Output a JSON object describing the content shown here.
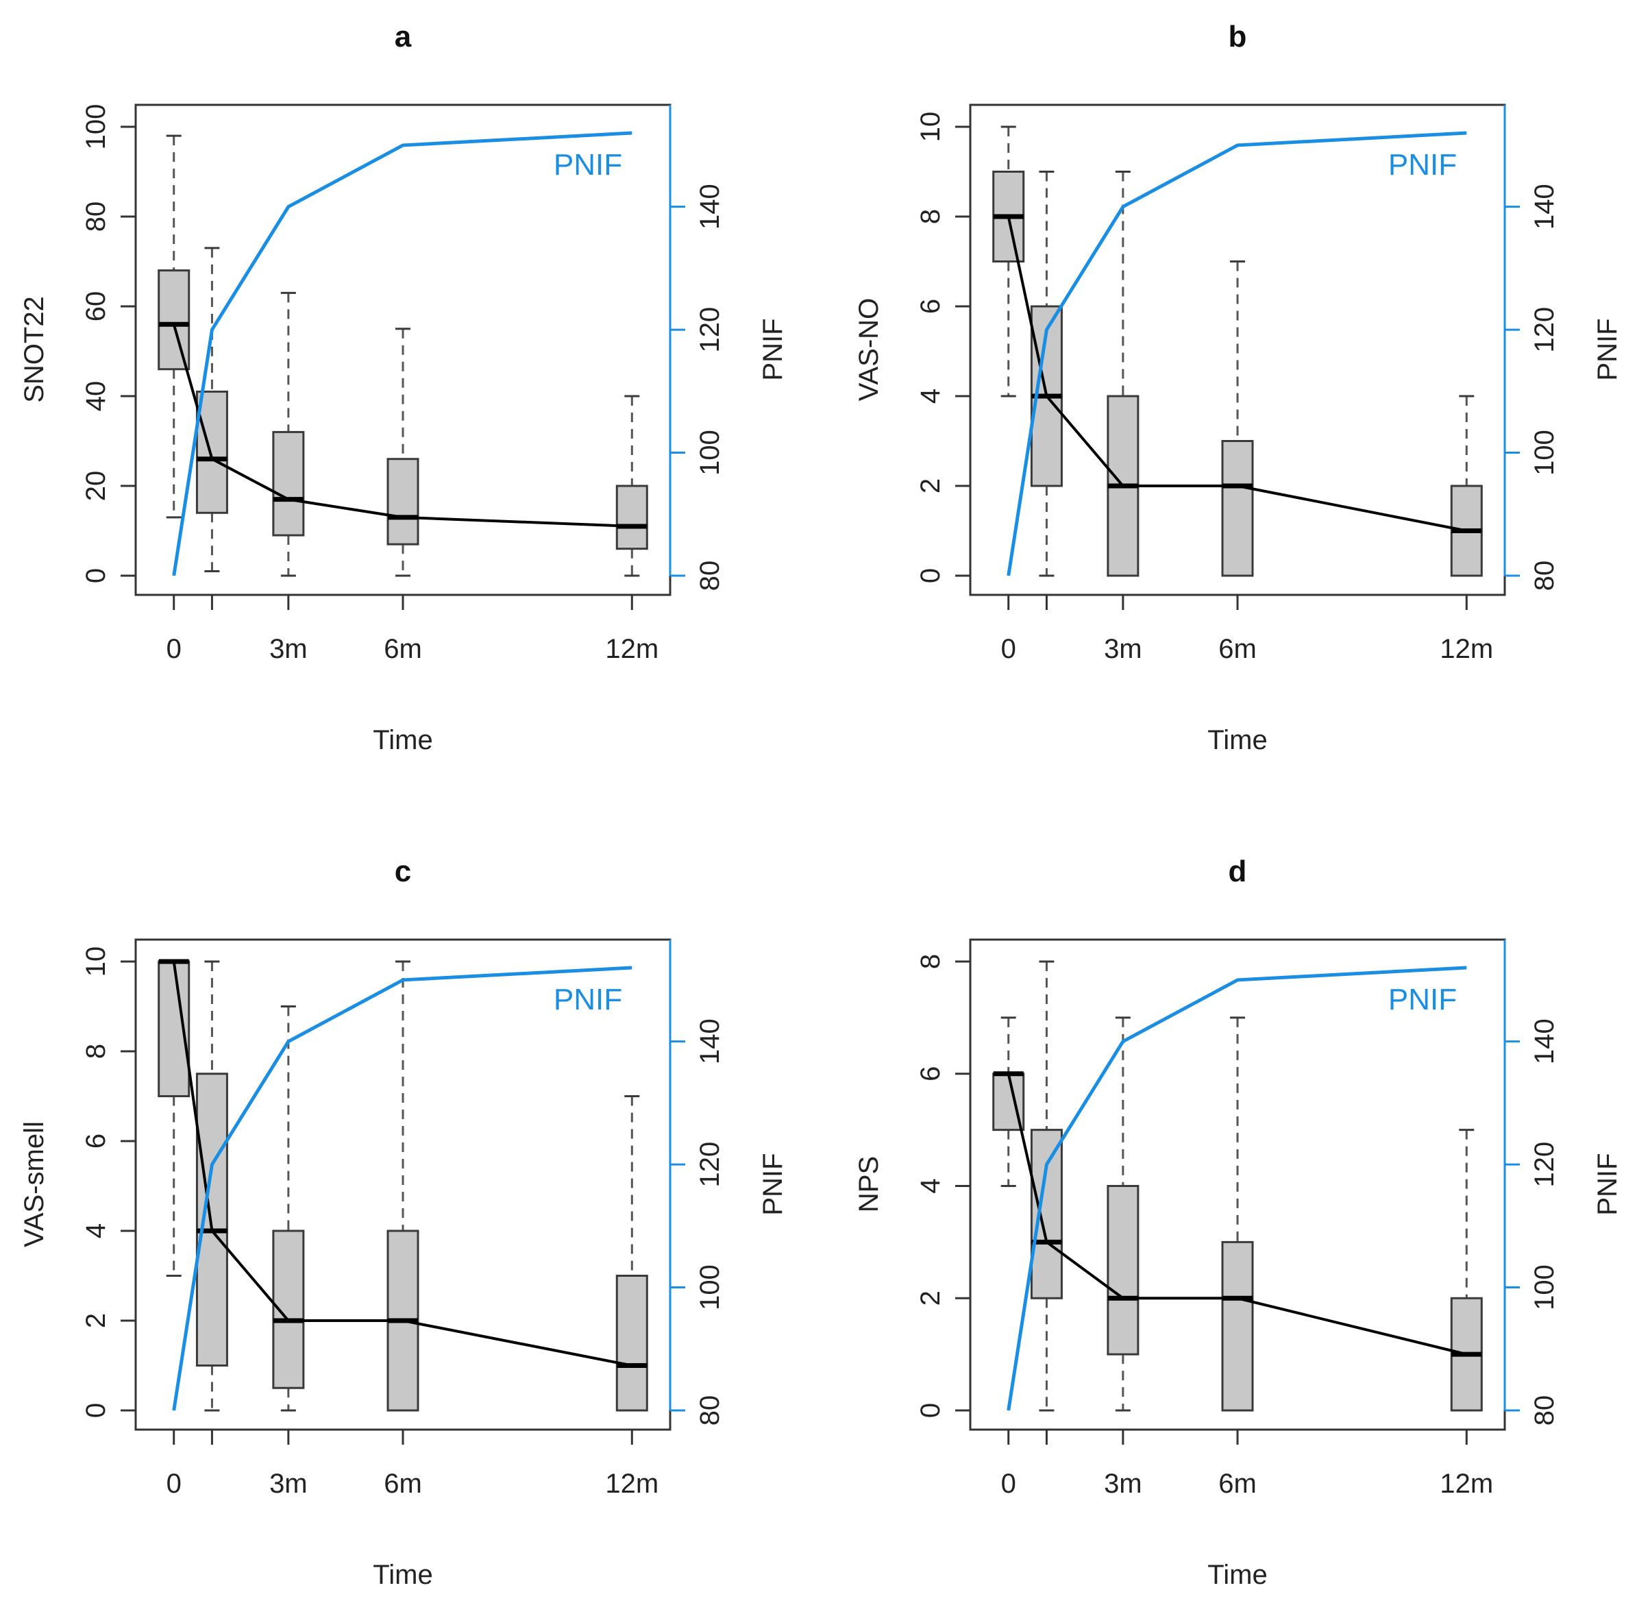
{
  "colors": {
    "box_fill": "#c8c8c8",
    "box_stroke": "#3a3a3a",
    "median_line": "#000000",
    "pnif_line": "#1a8ee3",
    "whisker": "#555555",
    "axis": "#333333"
  },
  "chart_data": [
    {
      "id": "a",
      "type": "box",
      "title": "a",
      "xlabel": "Time",
      "ylabel": "SNOT22",
      "ylabel_right": "PNIF",
      "ylim": [
        0,
        100
      ],
      "yticks": [
        "0",
        "20",
        "40",
        "60",
        "80",
        "100"
      ],
      "ytick_values": [
        0,
        20,
        40,
        60,
        80,
        100
      ],
      "ylim_right": [
        80,
        153
      ],
      "yticks_right": [
        "80",
        "100",
        "120",
        "140"
      ],
      "ytick_values_right": [
        80,
        100,
        120,
        140
      ],
      "x": [
        0,
        1,
        3,
        6,
        12
      ],
      "xticks": [
        "0",
        "3m",
        "6m",
        "12m"
      ],
      "xtick_values": [
        0,
        3,
        6,
        12
      ],
      "boxes": [
        {
          "x": 0,
          "low": 13,
          "q1": 46,
          "median": 56,
          "q3": 68,
          "high": 98
        },
        {
          "x": 1,
          "low": 1,
          "q1": 14,
          "median": 26,
          "q3": 41,
          "high": 73
        },
        {
          "x": 3,
          "low": 0,
          "q1": 9,
          "median": 17,
          "q3": 32,
          "high": 63
        },
        {
          "x": 6,
          "low": 0,
          "q1": 7,
          "median": 13,
          "q3": 26,
          "high": 55
        },
        {
          "x": 12,
          "low": 0,
          "q1": 6,
          "median": 11,
          "q3": 20,
          "high": 40
        }
      ],
      "median_series": [
        56,
        26,
        17,
        13,
        11
      ],
      "pnif_label": "PNIF",
      "pnif_series": [
        80,
        120,
        140,
        150,
        152
      ]
    },
    {
      "id": "b",
      "type": "box",
      "title": "b",
      "xlabel": "Time",
      "ylabel": "VAS-NO",
      "ylabel_right": "PNIF",
      "ylim": [
        0,
        10
      ],
      "yticks": [
        "0",
        "2",
        "4",
        "6",
        "8",
        "10"
      ],
      "ytick_values": [
        0,
        2,
        4,
        6,
        8,
        10
      ],
      "ylim_right": [
        80,
        153
      ],
      "yticks_right": [
        "80",
        "100",
        "120",
        "140"
      ],
      "ytick_values_right": [
        80,
        100,
        120,
        140
      ],
      "x": [
        0,
        1,
        3,
        6,
        12
      ],
      "xticks": [
        "0",
        "3m",
        "6m",
        "12m"
      ],
      "xtick_values": [
        0,
        3,
        6,
        12
      ],
      "boxes": [
        {
          "x": 0,
          "low": 4,
          "q1": 7,
          "median": 8,
          "q3": 9,
          "high": 10
        },
        {
          "x": 1,
          "low": 0,
          "q1": 2,
          "median": 4,
          "q3": 6,
          "high": 9
        },
        {
          "x": 3,
          "low": 0,
          "q1": 0,
          "median": 2,
          "q3": 4,
          "high": 9
        },
        {
          "x": 6,
          "low": 0,
          "q1": 0,
          "median": 2,
          "q3": 3,
          "high": 7
        },
        {
          "x": 12,
          "low": 0,
          "q1": 0,
          "median": 1,
          "q3": 2,
          "high": 4
        }
      ],
      "median_series": [
        8,
        4,
        2,
        2,
        1
      ],
      "pnif_label": "PNIF",
      "pnif_series": [
        80,
        120,
        140,
        150,
        152
      ]
    },
    {
      "id": "c",
      "type": "box",
      "title": "c",
      "xlabel": "Time",
      "ylabel": "VAS-smell",
      "ylabel_right": "PNIF",
      "ylim": [
        0,
        10
      ],
      "yticks": [
        "0",
        "2",
        "4",
        "6",
        "8",
        "10"
      ],
      "ytick_values": [
        0,
        2,
        4,
        6,
        8,
        10
      ],
      "ylim_right": [
        80,
        153
      ],
      "yticks_right": [
        "80",
        "100",
        "120",
        "140"
      ],
      "ytick_values_right": [
        80,
        100,
        120,
        140
      ],
      "x": [
        0,
        1,
        3,
        6,
        12
      ],
      "xticks": [
        "0",
        "3m",
        "6m",
        "12m"
      ],
      "xtick_values": [
        0,
        3,
        6,
        12
      ],
      "boxes": [
        {
          "x": 0,
          "low": 3,
          "q1": 7,
          "median": 10,
          "q3": 10,
          "high": 10
        },
        {
          "x": 1,
          "low": 0,
          "q1": 1,
          "median": 4,
          "q3": 7.5,
          "high": 10
        },
        {
          "x": 3,
          "low": 0,
          "q1": 0.5,
          "median": 2,
          "q3": 4,
          "high": 9
        },
        {
          "x": 6,
          "low": 0,
          "q1": 0,
          "median": 2,
          "q3": 4,
          "high": 10
        },
        {
          "x": 12,
          "low": 0,
          "q1": 0,
          "median": 1,
          "q3": 3,
          "high": 7
        }
      ],
      "median_series": [
        10,
        4,
        2,
        2,
        1
      ],
      "pnif_label": "PNIF",
      "pnif_series": [
        80,
        120,
        140,
        150,
        152
      ]
    },
    {
      "id": "d",
      "type": "box",
      "title": "d",
      "xlabel": "Time",
      "ylabel": "NPS",
      "ylabel_right": "PNIF",
      "ylim": [
        0,
        8
      ],
      "yticks": [
        "0",
        "2",
        "4",
        "6",
        "8"
      ],
      "ytick_values": [
        0,
        2,
        4,
        6,
        8
      ],
      "ylim_right": [
        80,
        153
      ],
      "yticks_right": [
        "80",
        "100",
        "120",
        "140"
      ],
      "ytick_values_right": [
        80,
        100,
        120,
        140
      ],
      "x": [
        0,
        1,
        3,
        6,
        12
      ],
      "xticks": [
        "0",
        "3m",
        "6m",
        "12m"
      ],
      "xtick_values": [
        0,
        3,
        6,
        12
      ],
      "boxes": [
        {
          "x": 0,
          "low": 4,
          "q1": 5,
          "median": 6,
          "q3": 6,
          "high": 7
        },
        {
          "x": 1,
          "low": 0,
          "q1": 2,
          "median": 3,
          "q3": 5,
          "high": 8
        },
        {
          "x": 3,
          "low": 0,
          "q1": 1,
          "median": 2,
          "q3": 4,
          "high": 7
        },
        {
          "x": 6,
          "low": 0,
          "q1": 0,
          "median": 2,
          "q3": 3,
          "high": 7
        },
        {
          "x": 12,
          "low": 0,
          "q1": 0,
          "median": 1,
          "q3": 2,
          "high": 5
        }
      ],
      "median_series": [
        6,
        3,
        2,
        2,
        1
      ],
      "pnif_label": "PNIF",
      "pnif_series": [
        80,
        120,
        140,
        150,
        152
      ]
    }
  ]
}
